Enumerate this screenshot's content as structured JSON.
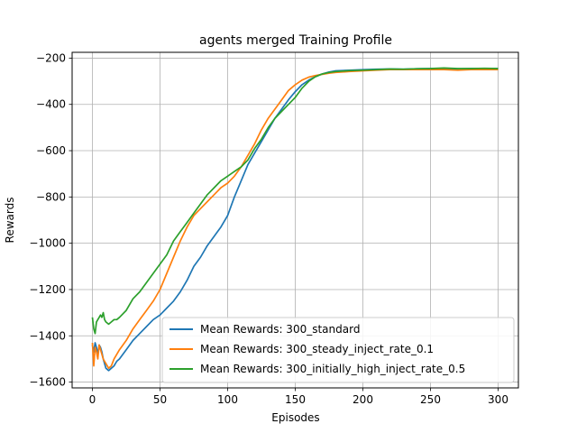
{
  "chart_data": {
    "type": "line",
    "title": "agents merged Training Profile",
    "xlabel": "Episodes",
    "ylabel": "Rewards",
    "xlim": [
      -15,
      315
    ],
    "ylim": [
      -1625,
      -175
    ],
    "xticks": [
      0,
      50,
      100,
      150,
      200,
      250,
      300
    ],
    "yticks": [
      -1600,
      -1400,
      -1200,
      -1000,
      -800,
      -600,
      -400,
      -200
    ],
    "grid": true,
    "legend_position": "lower-right",
    "series": [
      {
        "name": "Mean Rewards: 300_standard",
        "color": "#1f77b4",
        "x": [
          0,
          1,
          2,
          3,
          4,
          5,
          6,
          7,
          8,
          9,
          10,
          12,
          14,
          16,
          18,
          20,
          25,
          30,
          35,
          40,
          45,
          50,
          55,
          60,
          65,
          70,
          75,
          80,
          85,
          90,
          95,
          100,
          105,
          110,
          115,
          120,
          125,
          130,
          135,
          140,
          145,
          150,
          155,
          160,
          165,
          170,
          175,
          180,
          190,
          200,
          210,
          220,
          230,
          240,
          250,
          260,
          270,
          280,
          290,
          300
        ],
        "values": [
          -1440,
          -1470,
          -1430,
          -1450,
          -1480,
          -1440,
          -1450,
          -1470,
          -1500,
          -1520,
          -1540,
          -1550,
          -1540,
          -1530,
          -1510,
          -1500,
          -1460,
          -1420,
          -1390,
          -1360,
          -1330,
          -1310,
          -1280,
          -1250,
          -1210,
          -1160,
          -1100,
          -1060,
          -1010,
          -970,
          -930,
          -880,
          -800,
          -730,
          -660,
          -610,
          -560,
          -510,
          -460,
          -420,
          -380,
          -345,
          -315,
          -295,
          -280,
          -268,
          -260,
          -255,
          -252,
          -250,
          -248,
          -247,
          -248,
          -246,
          -245,
          -246,
          -247,
          -245,
          -246,
          -245
        ]
      },
      {
        "name": "Mean Rewards: 300_steady_inject_rate_0.1",
        "color": "#ff7f0e",
        "x": [
          0,
          1,
          2,
          3,
          4,
          5,
          6,
          7,
          8,
          9,
          10,
          12,
          14,
          16,
          18,
          20,
          25,
          30,
          35,
          40,
          45,
          50,
          55,
          60,
          65,
          70,
          75,
          80,
          85,
          90,
          95,
          100,
          105,
          110,
          115,
          120,
          125,
          130,
          135,
          140,
          145,
          150,
          155,
          160,
          165,
          170,
          175,
          180,
          190,
          200,
          210,
          220,
          230,
          240,
          250,
          260,
          270,
          280,
          290,
          300
        ],
        "values": [
          -1430,
          -1530,
          -1450,
          -1470,
          -1500,
          -1440,
          -1460,
          -1480,
          -1500,
          -1510,
          -1520,
          -1540,
          -1530,
          -1500,
          -1480,
          -1460,
          -1420,
          -1370,
          -1330,
          -1290,
          -1250,
          -1200,
          -1130,
          -1060,
          -990,
          -930,
          -880,
          -850,
          -820,
          -790,
          -760,
          -740,
          -710,
          -670,
          -620,
          -570,
          -510,
          -460,
          -420,
          -380,
          -340,
          -315,
          -295,
          -282,
          -275,
          -270,
          -265,
          -262,
          -258,
          -255,
          -252,
          -250,
          -250,
          -249,
          -250,
          -250,
          -252,
          -250,
          -250,
          -250
        ]
      },
      {
        "name": "Mean Rewards: 300_initially_high_inject_rate_0.5",
        "color": "#2ca02c",
        "x": [
          0,
          1,
          2,
          3,
          4,
          5,
          6,
          7,
          8,
          9,
          10,
          12,
          14,
          16,
          18,
          20,
          25,
          30,
          35,
          40,
          45,
          50,
          55,
          60,
          65,
          70,
          75,
          80,
          85,
          90,
          95,
          100,
          105,
          110,
          115,
          120,
          125,
          130,
          135,
          140,
          145,
          150,
          155,
          160,
          165,
          170,
          175,
          180,
          190,
          200,
          210,
          220,
          230,
          240,
          250,
          260,
          270,
          280,
          290,
          300
        ],
        "values": [
          -1320,
          -1370,
          -1390,
          -1340,
          -1330,
          -1320,
          -1310,
          -1320,
          -1300,
          -1330,
          -1340,
          -1350,
          -1340,
          -1330,
          -1330,
          -1320,
          -1290,
          -1240,
          -1210,
          -1170,
          -1130,
          -1090,
          -1050,
          -990,
          -950,
          -910,
          -870,
          -830,
          -790,
          -760,
          -730,
          -710,
          -690,
          -670,
          -640,
          -590,
          -550,
          -500,
          -460,
          -430,
          -400,
          -370,
          -330,
          -300,
          -280,
          -268,
          -262,
          -258,
          -254,
          -252,
          -250,
          -247,
          -248,
          -246,
          -245,
          -243,
          -245,
          -245,
          -244,
          -245
        ]
      }
    ]
  }
}
